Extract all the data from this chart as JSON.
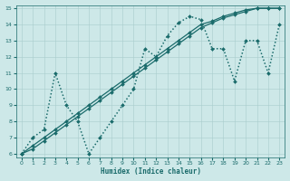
{
  "xlabel": "Humidex (Indice chaleur)",
  "xlim": [
    -0.5,
    23.5
  ],
  "ylim": [
    5.8,
    15.2
  ],
  "xticks": [
    0,
    1,
    2,
    3,
    4,
    5,
    6,
    7,
    8,
    9,
    10,
    11,
    12,
    13,
    14,
    15,
    16,
    17,
    18,
    19,
    20,
    21,
    22,
    23
  ],
  "yticks": [
    6,
    7,
    8,
    9,
    10,
    11,
    12,
    13,
    14,
    15
  ],
  "bg_color": "#cde8e8",
  "line_color": "#1a6b6b",
  "series": [
    {
      "x": [
        0,
        1,
        2,
        3,
        4,
        5,
        6,
        7,
        8,
        9,
        10,
        11,
        12,
        13,
        14,
        15,
        16,
        17,
        18,
        19,
        20,
        21,
        22,
        23
      ],
      "y": [
        6,
        6.5,
        7,
        7.5,
        8,
        8.5,
        9,
        9.5,
        10,
        10.5,
        11,
        11.5,
        12,
        12.5,
        13,
        13.5,
        14,
        14.2,
        14.5,
        14.7,
        14.9,
        15,
        15,
        15
      ],
      "style": "solid",
      "lw": 0.9
    },
    {
      "x": [
        0,
        1,
        2,
        3,
        4,
        5,
        6,
        7,
        8,
        9,
        10,
        11,
        12,
        13,
        14,
        15,
        16,
        17,
        18,
        19,
        20,
        21,
        22,
        23
      ],
      "y": [
        6,
        6.3,
        6.8,
        7.3,
        7.8,
        8.3,
        8.8,
        9.3,
        9.8,
        10.3,
        10.8,
        11.3,
        11.8,
        12.3,
        12.8,
        13.3,
        13.8,
        14.1,
        14.4,
        14.6,
        14.8,
        15,
        15,
        15
      ],
      "style": "solid",
      "lw": 0.9
    },
    {
      "x": [
        0,
        1,
        2,
        3,
        4,
        5,
        6,
        7,
        8,
        9,
        10,
        11,
        12,
        13,
        14,
        15,
        16,
        17,
        18,
        19,
        20,
        21,
        22,
        23
      ],
      "y": [
        6,
        7,
        7.5,
        11,
        9,
        8,
        6,
        7,
        8,
        9,
        10,
        12.5,
        12,
        13.3,
        14.1,
        14.5,
        14.3,
        12.5,
        12.5,
        10.5,
        13,
        13,
        11,
        14
      ],
      "style": "dotted",
      "lw": 1.1
    }
  ]
}
